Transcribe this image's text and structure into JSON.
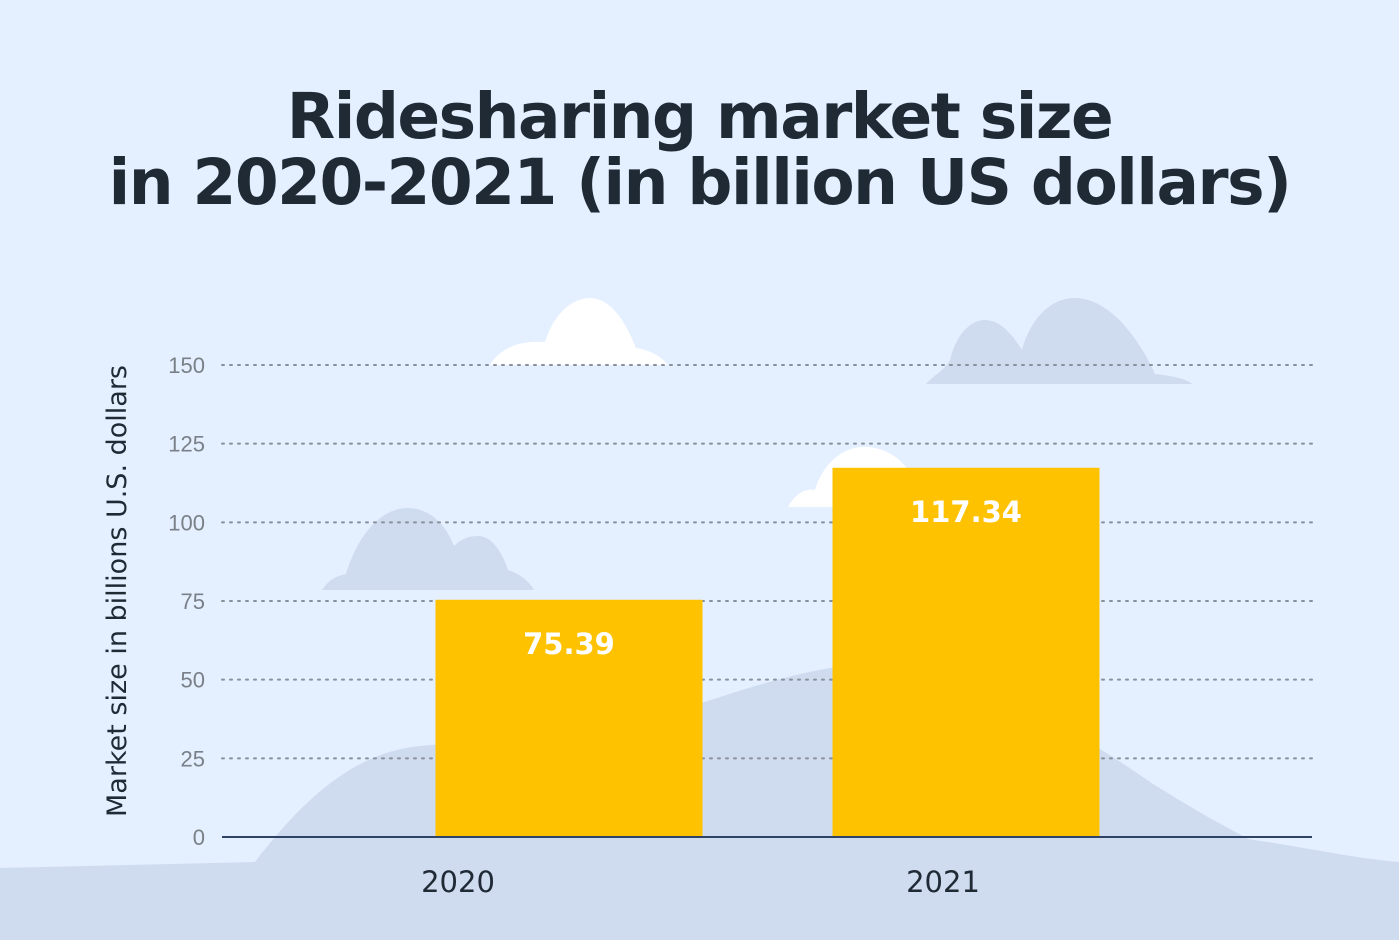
{
  "title": {
    "line1": "Ridesharing market size",
    "line2": "in 2020-2021 (in billion US dollars)"
  },
  "colors": {
    "background": "#e4efff",
    "bar": "#ffc200",
    "hills": "#cfdcf0",
    "cloud_white": "#ffffff",
    "cloud_blue": "#cfdcf0",
    "axis": "#2d4466",
    "grid": "#8a9099",
    "title": "#1f2a35"
  },
  "chart_data": {
    "type": "bar",
    "title": "Ridesharing market size in 2020-2021 (in billion US dollars)",
    "xlabel": "",
    "ylabel": "Market size in billions U.S. dollars",
    "categories": [
      "2020",
      "2021"
    ],
    "values": [
      75.39,
      117.34
    ],
    "value_labels": [
      "75.39",
      "117.34"
    ],
    "ylim": [
      0,
      150
    ],
    "yticks": [
      0,
      25,
      50,
      75,
      100,
      125,
      150
    ],
    "grid": "dotted horizontal",
    "legend": "none"
  }
}
